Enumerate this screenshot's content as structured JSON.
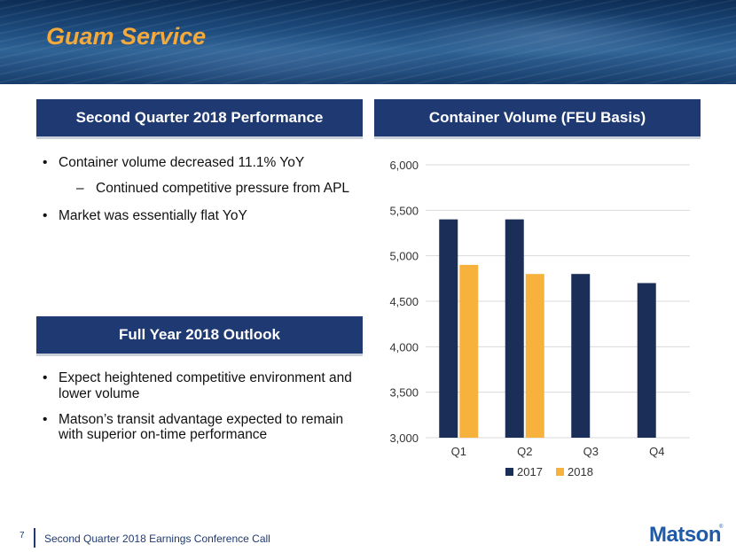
{
  "banner": {
    "title": "Guam Service"
  },
  "left_panel_1": {
    "header": "Second Quarter 2018 Performance",
    "bullet_1": "Container volume decreased 11.1% YoY",
    "sub_bullet_1": "Continued competitive pressure from APL",
    "bullet_2": "Market was essentially flat YoY"
  },
  "left_panel_2": {
    "header": "Full Year 2018 Outlook",
    "bullet_1": "Expect heightened competitive environment and lower volume",
    "bullet_2": "Matson’s transit advantage expected to remain with superior on-time performance"
  },
  "right_panel": {
    "header": "Container Volume (FEU Basis)"
  },
  "chart_data": {
    "type": "bar",
    "categories": [
      "Q1",
      "Q2",
      "Q3",
      "Q4"
    ],
    "series": [
      {
        "name": "2017",
        "values": [
          5400,
          5400,
          4800,
          4700
        ],
        "color": "#1a2e57"
      },
      {
        "name": "2018",
        "values": [
          4900,
          4800,
          null,
          null
        ],
        "color": "#f7b13d"
      }
    ],
    "ylim": [
      3000,
      6000
    ],
    "yticks": [
      3000,
      3500,
      4000,
      4500,
      5000,
      5500,
      6000
    ],
    "ytick_labels": [
      "3,000",
      "3,500",
      "4,000",
      "4,500",
      "5,000",
      "5,500",
      "6,000"
    ],
    "grid": true,
    "legend_position": "bottom"
  },
  "footer": {
    "page_number": "7",
    "text": "Second Quarter 2018 Earnings Conference Call",
    "logo": "Matson",
    "logo_mark": "®"
  }
}
